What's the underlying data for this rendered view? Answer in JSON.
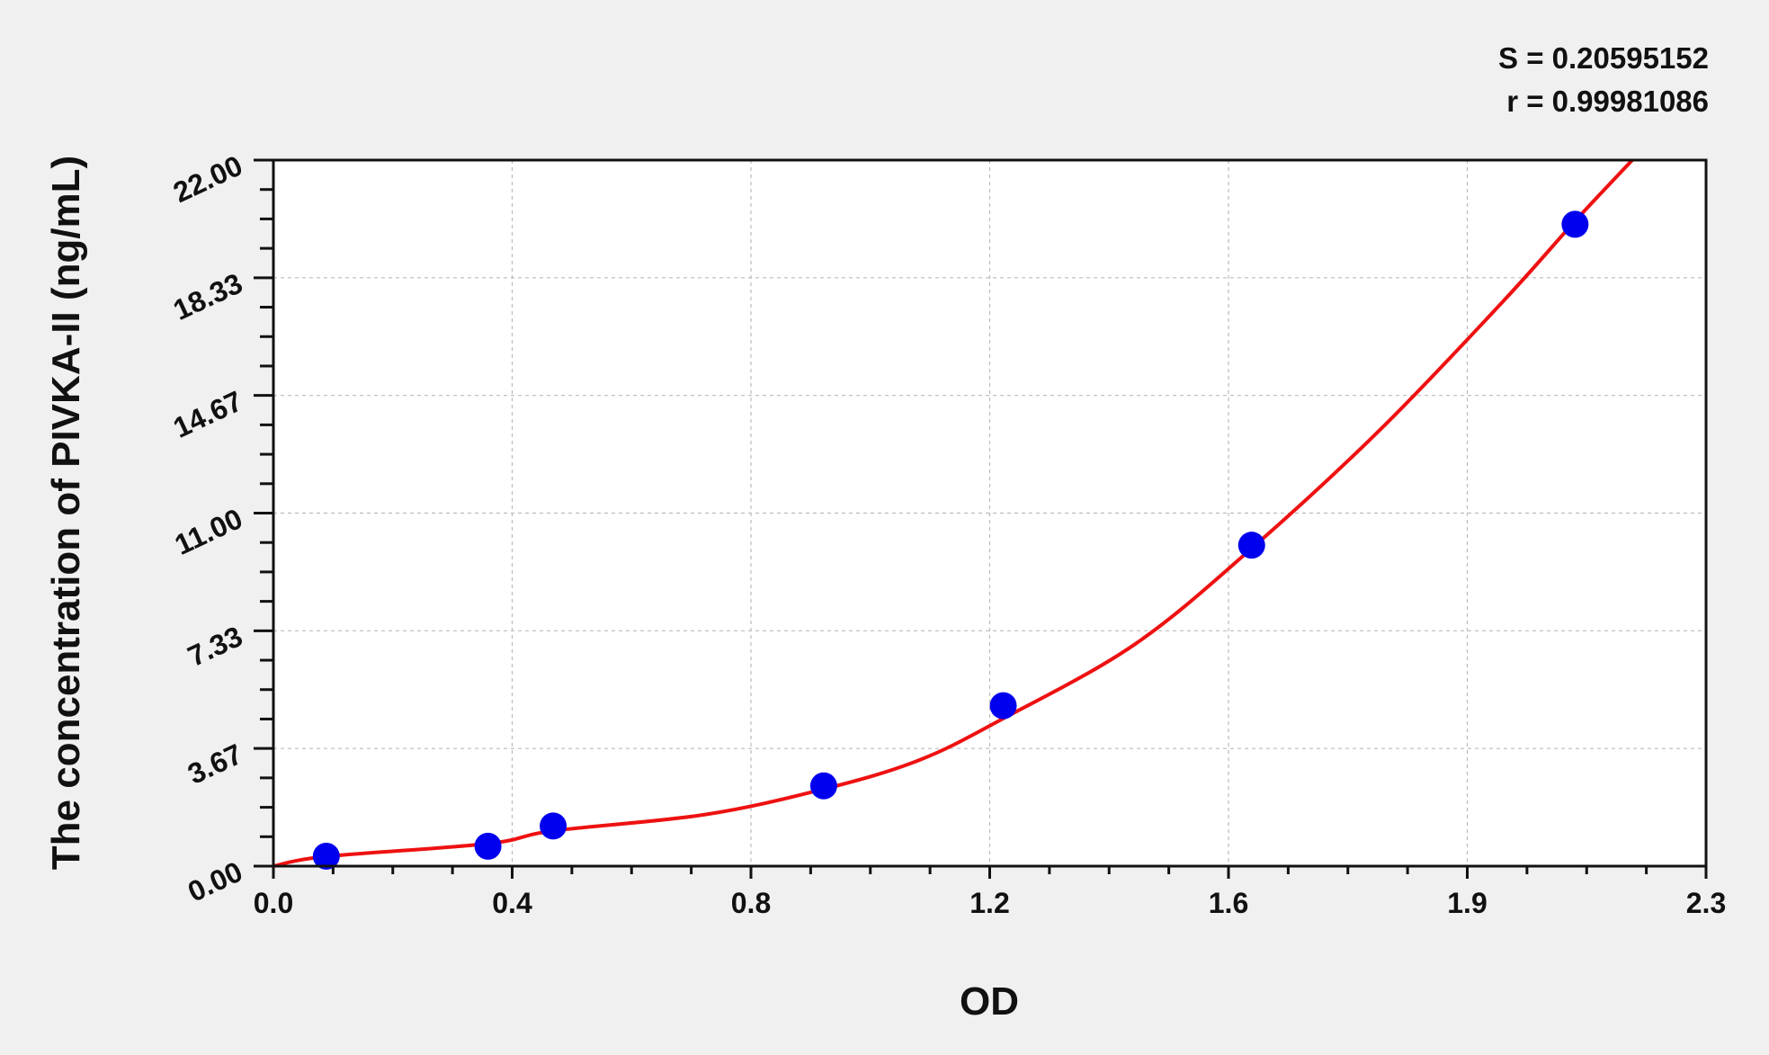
{
  "chart_data": {
    "type": "scatter",
    "title": "",
    "xlabel": "OD",
    "ylabel": "The concentration of PIVKA-II (ng/mL)",
    "xlim": [
      0,
      2.33
    ],
    "ylim": [
      0,
      22
    ],
    "x_ticks": [
      "0.0",
      "0.4",
      "0.8",
      "1.2",
      "1.6",
      "1.9",
      "2.3"
    ],
    "y_ticks": [
      "0.00",
      "3.67",
      "7.33",
      "11.00",
      "14.67",
      "18.33",
      "22.00"
    ],
    "grid": true,
    "annotations": [
      "S = 0.20595152",
      "r = 0.99981086"
    ],
    "points": [
      {
        "x": 0.086,
        "y": 0.31
      },
      {
        "x": 0.349,
        "y": 0.62
      },
      {
        "x": 0.455,
        "y": 1.25
      },
      {
        "x": 0.895,
        "y": 2.5
      },
      {
        "x": 1.187,
        "y": 5
      },
      {
        "x": 1.591,
        "y": 10
      },
      {
        "x": 2.117,
        "y": 20
      }
    ],
    "fit_curve": [
      [
        0,
        0
      ],
      [
        0.086,
        0.3
      ],
      [
        0.349,
        0.7
      ],
      [
        0.455,
        1.1
      ],
      [
        0.7,
        1.6
      ],
      [
        0.895,
        2.4
      ],
      [
        1.05,
        3.3
      ],
      [
        1.187,
        4.6
      ],
      [
        1.4,
        6.9
      ],
      [
        1.591,
        9.9
      ],
      [
        1.8,
        13.6
      ],
      [
        2.0,
        17.6
      ],
      [
        2.117,
        20.1
      ],
      [
        2.21,
        22
      ]
    ],
    "colors": {
      "points": "#0000ee",
      "curve": "#ee1111",
      "grid": "#bbbbbb",
      "background": "#f0f0f0",
      "plot_bg": "#ffffff"
    }
  }
}
